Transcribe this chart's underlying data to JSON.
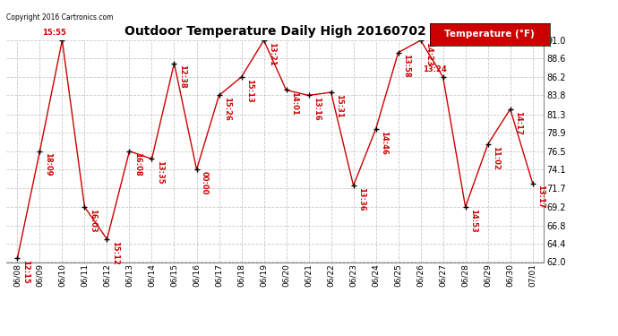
{
  "title": "Outdoor Temperature Daily High 20160702",
  "copyright": "Copyright 2016 Cartronics.com",
  "legend_label": "Temperature (°F)",
  "dates": [
    "06/08",
    "06/09",
    "06/10",
    "06/11",
    "06/12",
    "06/13",
    "06/14",
    "06/15",
    "06/16",
    "06/17",
    "06/18",
    "06/19",
    "06/20",
    "06/21",
    "06/22",
    "06/23",
    "06/24",
    "06/25",
    "06/26",
    "06/27",
    "06/28",
    "06/29",
    "06/30",
    "07/01"
  ],
  "temps": [
    62.5,
    76.5,
    91.0,
    69.2,
    65.0,
    76.5,
    75.5,
    88.0,
    74.1,
    83.8,
    86.2,
    91.0,
    84.5,
    83.8,
    84.2,
    72.0,
    79.4,
    89.4,
    91.0,
    86.2,
    69.2,
    77.4,
    82.0,
    72.3
  ],
  "times": [
    "12:15",
    "18:09",
    "15:55",
    "16:03",
    "15:12",
    "16:08",
    "13:35",
    "12:38",
    "00:00",
    "15:26",
    "15:13",
    "13:21",
    "14:01",
    "13:16",
    "15:31",
    "13:36",
    "14:46",
    "13:58",
    "14:23",
    "13:24",
    "14:53",
    "11:02",
    "14:17",
    "13:17"
  ],
  "ylim": [
    62.0,
    91.0
  ],
  "yticks": [
    62.0,
    64.4,
    66.8,
    69.2,
    71.7,
    74.1,
    76.5,
    78.9,
    81.3,
    83.8,
    86.2,
    88.6,
    91.0
  ],
  "line_color": "#cc0000",
  "marker_color": "#000000",
  "label_color": "#cc0000",
  "title_color": "#000000",
  "bg_color": "#ffffff",
  "grid_color": "#bbbbbb",
  "legend_bg": "#cc0000",
  "legend_text_color": "#ffffff",
  "peak_dates_above": [
    2,
    19,
    25
  ],
  "figsize": [
    6.9,
    3.75
  ],
  "dpi": 100
}
